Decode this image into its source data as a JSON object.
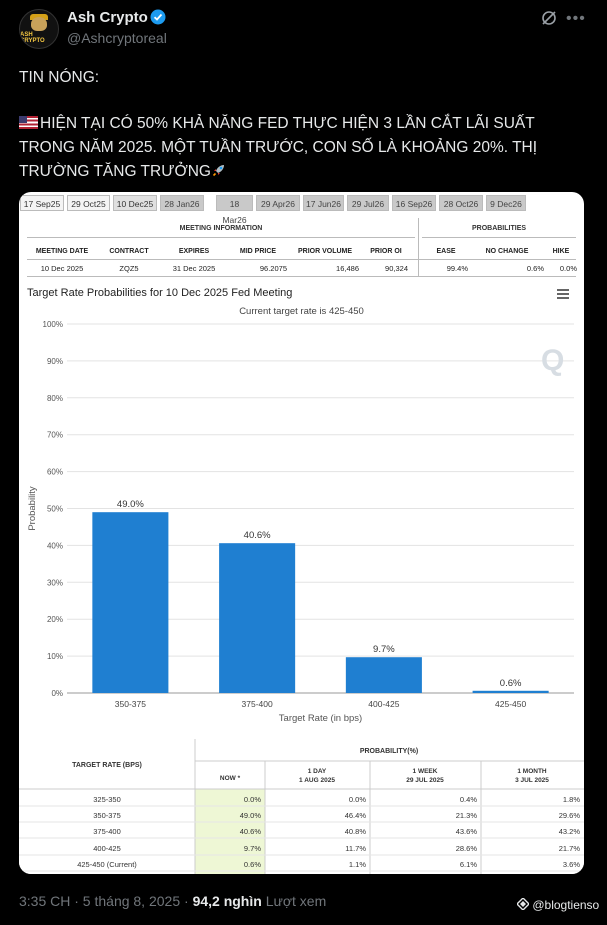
{
  "post": {
    "display_name": "Ash Crypto",
    "handle": "@Ashcryptoreal",
    "avatar_text": "ASH CRYPTO",
    "text_line1": "TIN NÓNG:",
    "text_line2": "HIỆN TẠI CÓ 50% KHẢ NĂNG FED THỰC HIỆN 3 LẦN CẮT LÃI SUẤT TRONG NĂM 2025. MỘT TUẦN TRƯỚC, CON SỐ LÀ KHOẢNG 20%. THỊ TRƯỜNG TĂNG TRƯỞNG",
    "time": "3:35 CH · 5 tháng 8, 2025 ·",
    "views": "94,2 nghìn",
    "views_label": "Lượt xem",
    "watermark": "@blogtienso"
  },
  "tabs": [
    {
      "label": "17 Sep25",
      "state": "normal"
    },
    {
      "label": "29 Oct25",
      "state": "normal"
    },
    {
      "label": "10 Dec25",
      "state": "active"
    },
    {
      "label": "28 Jan26",
      "state": "dim"
    },
    {
      "label": "18 Mar26",
      "state": "dim"
    },
    {
      "label": "29 Apr26",
      "state": "dim"
    },
    {
      "label": "17 Jun26",
      "state": "dim"
    },
    {
      "label": "29 Jul26",
      "state": "dim"
    },
    {
      "label": "16 Sep26",
      "state": "dim"
    },
    {
      "label": "28 Oct26",
      "state": "dim"
    },
    {
      "label": "9 Dec26",
      "state": "dim"
    }
  ],
  "meeting_info": {
    "section_title": "MEETING INFORMATION",
    "headers": [
      "MEETING DATE",
      "CONTRACT",
      "EXPIRES",
      "MID PRICE",
      "PRIOR VOLUME",
      "PRIOR OI"
    ],
    "values": [
      "10 Dec 2025",
      "ZQZ5",
      "31 Dec 2025",
      "96.2075",
      "16,486",
      "90,324"
    ]
  },
  "probabilities": {
    "section_title": "PROBABILITIES",
    "headers": [
      "EASE",
      "NO CHANGE",
      "HIKE"
    ],
    "values": [
      "99.4%",
      "0.6%",
      "0.0%"
    ]
  },
  "chart_data": {
    "type": "bar",
    "title": "Target Rate Probabilities for 10 Dec 2025 Fed Meeting",
    "subtitle": "Current target rate is 425-450",
    "xlabel": "Target Rate (in bps)",
    "ylabel": "Probability",
    "categories": [
      "350-375",
      "375-400",
      "400-425",
      "425-450"
    ],
    "values": [
      49.0,
      40.6,
      9.7,
      0.6
    ],
    "data_labels": [
      "49.0%",
      "40.6%",
      "9.7%",
      "0.6%"
    ],
    "ylim": [
      0,
      100
    ],
    "yticks": [
      "0%",
      "10%",
      "20%",
      "30%",
      "40%",
      "50%",
      "60%",
      "70%",
      "80%",
      "90%",
      "100%"
    ],
    "grid": true,
    "bar_color": "#1f7fd1"
  },
  "prob_table": {
    "col_target": "TARGET RATE (BPS)",
    "col_prob": "PROBABILITY(%)",
    "sub_headers": [
      "NOW *",
      "1 DAY\n1 AUG 2025",
      "1 WEEK\n29 JUL 2025",
      "1 MONTH\n3 JUL 2025"
    ],
    "rows": [
      {
        "rate": "325-350",
        "now": "0.0%",
        "day": "0.0%",
        "week": "0.4%",
        "month": "1.8%"
      },
      {
        "rate": "350-375",
        "now": "49.0%",
        "day": "46.4%",
        "week": "21.3%",
        "month": "29.6%"
      },
      {
        "rate": "375-400",
        "now": "40.6%",
        "day": "40.8%",
        "week": "43.6%",
        "month": "43.2%"
      },
      {
        "rate": "400-425",
        "now": "9.7%",
        "day": "11.7%",
        "week": "28.6%",
        "month": "21.7%"
      },
      {
        "rate": "425-450 (Current)",
        "now": "0.6%",
        "day": "1.1%",
        "week": "6.1%",
        "month": "3.6%"
      }
    ]
  }
}
